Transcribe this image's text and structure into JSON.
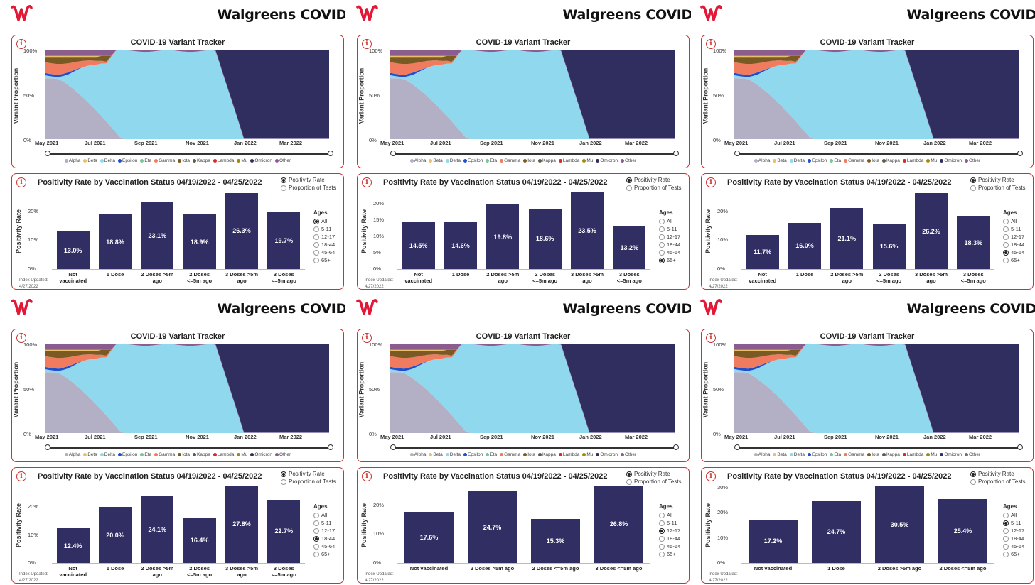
{
  "header": {
    "brand_title": "Walgreens COVID",
    "logo_icon": "walgreens-w-logo",
    "brand_color": "#e31837"
  },
  "variant_tracker": {
    "title": "COVID-19 Variant Tracker",
    "ylabel": "Variant Proportion",
    "yticks": [
      "100%",
      "50%",
      "0%"
    ],
    "xticks": [
      "May 2021",
      "Jul 2021",
      "Sep 2021",
      "Nov 2021",
      "Jan 2022",
      "Mar 2022"
    ],
    "legend": [
      {
        "name": "Alpha",
        "color": "#b3afc4"
      },
      {
        "name": "Beta",
        "color": "#e8c06a"
      },
      {
        "name": "Delta",
        "color": "#8fd8ee"
      },
      {
        "name": "Epsilon",
        "color": "#1f4fcc"
      },
      {
        "name": "Eta",
        "color": "#7ac49a"
      },
      {
        "name": "Gamma",
        "color": "#f07b5e"
      },
      {
        "name": "Iota",
        "color": "#7a5a22"
      },
      {
        "name": "Kappa",
        "color": "#5f5a4a"
      },
      {
        "name": "Lambda",
        "color": "#d8282a"
      },
      {
        "name": "Mu",
        "color": "#a08a12"
      },
      {
        "name": "Omicron",
        "color": "#2f2e5e"
      },
      {
        "name": "Other",
        "color": "#8b5d8f"
      }
    ]
  },
  "positivity": {
    "title": "Positivity Rate by Vaccination Status 04/19/2022 - 04/25/2022",
    "ylabel": "Positivity Rate",
    "view_options": [
      "Positivity Rate",
      "Proportion of Tests"
    ],
    "selected_view": 0,
    "ages_title": "Ages",
    "ages": [
      "All",
      "5-11",
      "12-17",
      "18-44",
      "45-64",
      "65+"
    ],
    "updated_label": "Index Updated:",
    "updated_date": "4/27/2022"
  },
  "chart_data": [
    {
      "type": "bar",
      "title": "Positivity Rate by Vaccination Status 04/19/2022 - 04/25/2022",
      "ylabel": "Positivity Rate",
      "age_group": "All",
      "categories": [
        "Not vaccinated",
        "1 Dose",
        "2 Doses >5m ago",
        "2 Doses <=5m ago",
        "3 Doses >5m ago",
        "3 Doses <=5m ago"
      ],
      "values": [
        13.0,
        18.8,
        23.1,
        18.9,
        26.3,
        19.7
      ],
      "labels": [
        "13.0%",
        "18.8%",
        "23.1%",
        "18.9%",
        "26.3%",
        "19.7%"
      ],
      "yticks": [
        "0%",
        "10%",
        "20%"
      ],
      "ylim": [
        0,
        27
      ]
    },
    {
      "type": "bar",
      "title": "Positivity Rate by Vaccination Status 04/19/2022 - 04/25/2022",
      "ylabel": "Positivity Rate",
      "age_group": "65+",
      "categories": [
        "Not vaccinated",
        "1 Dose",
        "2 Doses >5m ago",
        "2 Doses <=5m ago",
        "3 Doses >5m ago",
        "3 Doses <=5m ago"
      ],
      "values": [
        14.5,
        14.6,
        19.8,
        18.6,
        23.5,
        13.2
      ],
      "labels": [
        "14.5%",
        "14.6%",
        "19.8%",
        "18.6%",
        "23.5%",
        "13.2%"
      ],
      "yticks": [
        "0%",
        "5%",
        "10%",
        "15%",
        "20%"
      ],
      "ylim": [
        0,
        24
      ]
    },
    {
      "type": "bar",
      "title": "Positivity Rate by Vaccination Status 04/19/2022 - 04/25/2022",
      "ylabel": "Positivity Rate",
      "age_group": "45-64",
      "categories": [
        "Not vaccinated",
        "1 Dose",
        "2 Doses >5m ago",
        "2 Doses <=5m ago",
        "3 Doses >5m ago",
        "3 Doses <=5m ago"
      ],
      "values": [
        11.7,
        16.0,
        21.1,
        15.6,
        26.2,
        18.3
      ],
      "labels": [
        "11.7%",
        "16.0%",
        "21.1%",
        "15.6%",
        "26.2%",
        "18.3%"
      ],
      "yticks": [
        "0%",
        "10%",
        "20%"
      ],
      "ylim": [
        0,
        27
      ]
    },
    {
      "type": "bar",
      "title": "Positivity Rate by Vaccination Status 04/19/2022 - 04/25/2022",
      "ylabel": "Positivity Rate",
      "age_group": "18-44",
      "categories": [
        "Not vaccinated",
        "1 Dose",
        "2 Doses >5m ago",
        "2 Doses <=5m ago",
        "3 Doses >5m ago",
        "3 Doses <=5m ago"
      ],
      "values": [
        12.4,
        20.0,
        24.1,
        16.4,
        27.8,
        22.7
      ],
      "labels": [
        "12.4%",
        "20.0%",
        "24.1%",
        "16.4%",
        "27.8%",
        "22.7%"
      ],
      "yticks": [
        "0%",
        "10%",
        "20%"
      ],
      "ylim": [
        0,
        28
      ]
    },
    {
      "type": "bar",
      "title": "Positivity Rate by Vaccination Status 04/19/2022 - 04/25/2022",
      "ylabel": "Positivity Rate",
      "age_group": "12-17",
      "categories": [
        "Not vaccinated",
        "2 Doses >5m ago",
        "2 Doses <=5m ago",
        "3 Doses <=5m ago"
      ],
      "values": [
        17.6,
        24.7,
        15.3,
        26.8
      ],
      "labels": [
        "17.6%",
        "24.7%",
        "15.3%",
        "26.8%"
      ],
      "yticks": [
        "0%",
        "10%",
        "20%"
      ],
      "ylim": [
        0,
        27
      ]
    },
    {
      "type": "bar",
      "title": "Positivity Rate by Vaccination Status 04/19/2022 - 04/25/2022",
      "ylabel": "Positivity Rate",
      "age_group": "5-11",
      "categories": [
        "Not vaccinated",
        "1 Dose",
        "2 Doses >5m ago",
        "2 Doses <=5m ago"
      ],
      "values": [
        17.2,
        24.7,
        30.5,
        25.4
      ],
      "labels": [
        "17.2%",
        "24.7%",
        "30.5%",
        "25.4%"
      ],
      "yticks": [
        "0%",
        "10%",
        "20%",
        "30%"
      ],
      "ylim": [
        0,
        31
      ]
    }
  ]
}
